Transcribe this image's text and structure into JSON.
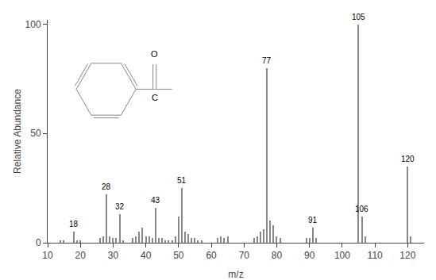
{
  "chart_data": {
    "type": "bar",
    "x": [
      14,
      15,
      18,
      19,
      20,
      26,
      27,
      28,
      29,
      30,
      31,
      32,
      33,
      36,
      37,
      38,
      39,
      40,
      41,
      42,
      43,
      44,
      45,
      46,
      47,
      48,
      49,
      50,
      51,
      52,
      53,
      54,
      55,
      56,
      57,
      62,
      63,
      64,
      65,
      73,
      74,
      75,
      76,
      77,
      78,
      79,
      80,
      81,
      89,
      90,
      91,
      92,
      105,
      106,
      107,
      120,
      121
    ],
    "values": [
      1,
      1,
      5,
      1,
      1,
      2,
      3,
      22,
      3,
      2,
      2,
      13,
      1,
      2,
      3,
      5,
      7,
      3,
      3,
      2,
      16,
      2,
      2,
      1,
      1,
      1,
      3,
      12,
      25,
      5,
      4,
      2,
      2,
      1,
      1,
      2,
      3,
      2,
      3,
      2,
      3,
      5,
      6,
      80,
      10,
      8,
      3,
      2,
      2,
      2,
      7,
      2,
      100,
      12,
      3,
      35,
      3
    ],
    "color": "#888888",
    "xlabel": "m/z",
    "ylabel": "Relative Abundance",
    "xlim": [
      10,
      125
    ],
    "ylim": [
      0,
      102
    ],
    "xticks": [
      10,
      20,
      30,
      40,
      50,
      60,
      70,
      80,
      90,
      100,
      110,
      120
    ],
    "yticks": [
      0,
      50,
      100
    ],
    "grid": false,
    "annotations": [
      {
        "x": 18,
        "y": 5,
        "text": "18"
      },
      {
        "x": 28,
        "y": 22,
        "text": "28"
      },
      {
        "x": 32,
        "y": 13,
        "text": "32"
      },
      {
        "x": 43,
        "y": 16,
        "text": "43"
      },
      {
        "x": 51,
        "y": 25,
        "text": "51"
      },
      {
        "x": 77,
        "y": 80,
        "text": "77"
      },
      {
        "x": 91,
        "y": 7,
        "text": "91"
      },
      {
        "x": 105,
        "y": 100,
        "text": "105"
      },
      {
        "x": 106,
        "y": 12,
        "text": "106"
      },
      {
        "x": 120,
        "y": 35,
        "text": "120"
      },
      {
        "text": "C"
      },
      {
        "text": "O"
      }
    ]
  }
}
